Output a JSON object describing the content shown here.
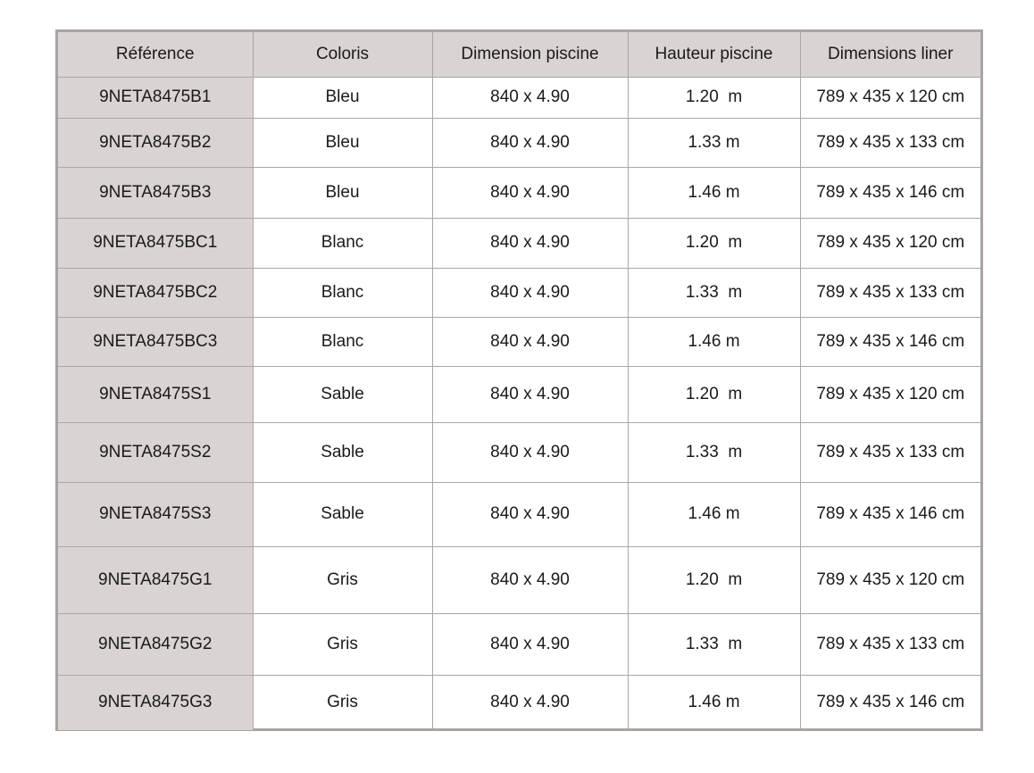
{
  "table": {
    "headers": [
      "Référence",
      "Coloris",
      "Dimension piscine",
      "Hauteur piscine",
      "Dimensions liner"
    ],
    "rows": [
      [
        "9NETA8475B1",
        "Bleu",
        "840 x 4.90",
        "1.20  m",
        "789 x 435 x 120 cm"
      ],
      [
        "9NETA8475B2",
        "Bleu",
        "840 x 4.90",
        "1.33 m",
        "789 x 435 x 133 cm"
      ],
      [
        "9NETA8475B3",
        "Bleu",
        "840 x 4.90",
        "1.46 m",
        "789 x 435 x 146 cm"
      ],
      [
        "9NETA8475BC1",
        "Blanc",
        "840 x 4.90",
        "1.20  m",
        "789 x 435 x 120 cm"
      ],
      [
        "9NETA8475BC2",
        "Blanc",
        "840 x 4.90",
        "1.33  m",
        "789 x 435 x 133 cm"
      ],
      [
        "9NETA8475BC3",
        "Blanc",
        "840 x 4.90",
        "1.46 m",
        "789 x 435 x 146 cm"
      ],
      [
        "9NETA8475S1",
        "Sable",
        "840 x 4.90",
        "1.20  m",
        "789 x 435 x 120 cm"
      ],
      [
        "9NETA8475S2",
        "Sable",
        "840 x 4.90",
        "1.33  m",
        "789 x 435 x 133 cm"
      ],
      [
        "9NETA8475S3",
        "Sable",
        "840 x 4.90",
        "1.46 m",
        "789 x 435 x 146 cm"
      ],
      [
        "9NETA8475G1",
        "Gris",
        "840 x 4.90",
        "1.20  m",
        "789 x 435 x 120 cm"
      ],
      [
        "9NETA8475G2",
        "Gris",
        "840 x 4.90",
        "1.33  m",
        "789 x 435 x 133 cm"
      ],
      [
        "9NETA8475G3",
        "Gris",
        "840 x 4.90",
        "1.46 m",
        "789 x 435 x 146 cm"
      ]
    ]
  },
  "colors": {
    "header_bg": "#d9d3d1",
    "border": "#a9a4a2"
  }
}
